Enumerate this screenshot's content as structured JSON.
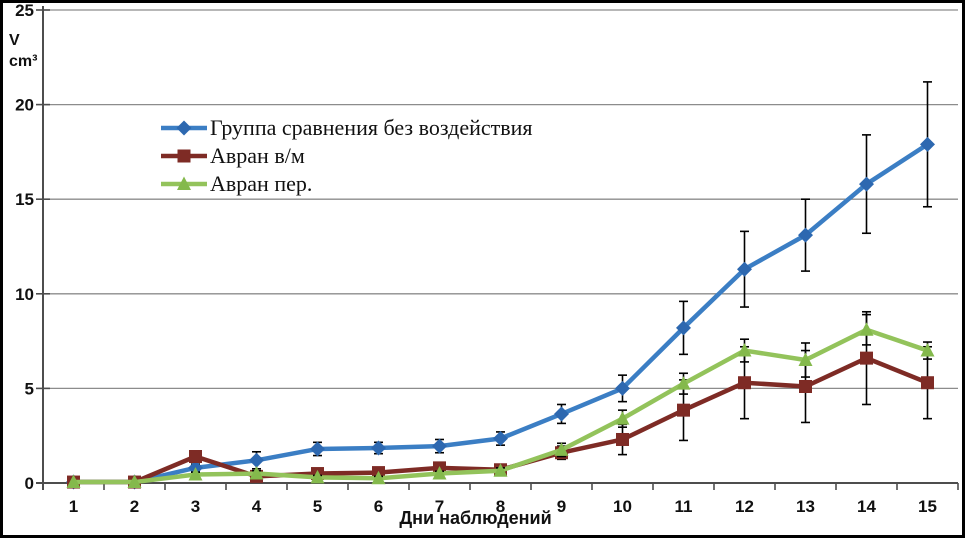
{
  "frame": {
    "background": "#ffffff",
    "border_color": "#000000"
  },
  "chart_data": {
    "type": "line",
    "title": "",
    "xlabel": "Дни наблюдений",
    "ylabel": "V cm³",
    "ylabel_lines": [
      "V",
      "cm³"
    ],
    "x_ticklabels": [
      "1",
      "2",
      "3",
      "4",
      "5",
      "6",
      "7",
      "8",
      "9",
      "10",
      "11",
      "12",
      "13",
      "14",
      "15"
    ],
    "yticks": [
      0,
      5,
      10,
      15,
      20,
      25
    ],
    "ylim": [
      0,
      25
    ],
    "grid": true,
    "error_bars": true,
    "legend_position": "inside-top-left",
    "axis_color": "#4d4d4d",
    "grid_color": "#8c8c8c",
    "error_bar_color": "#000000",
    "series": [
      {
        "name": "Группа сравнения без воздействия",
        "marker": "diamond",
        "line_color": "#3b7ec4",
        "marker_color": "#2d68b0",
        "values": [
          0.05,
          0.05,
          0.8,
          1.2,
          1.8,
          1.85,
          1.95,
          2.35,
          3.65,
          5.0,
          8.2,
          11.3,
          13.1,
          15.8,
          17.9
        ],
        "errors": [
          0,
          0,
          0.2,
          0.45,
          0.35,
          0.3,
          0.35,
          0.35,
          0.5,
          0.7,
          1.4,
          2.0,
          1.9,
          2.6,
          3.3
        ]
      },
      {
        "name": "Авран в/м",
        "marker": "square",
        "line_color": "#7e2b25",
        "marker_color": "#7e2b25",
        "values": [
          0.05,
          0.05,
          1.4,
          0.35,
          0.5,
          0.55,
          0.8,
          0.7,
          1.6,
          2.3,
          3.85,
          5.3,
          5.1,
          6.6,
          5.3
        ],
        "errors": [
          0,
          0,
          0.15,
          0.25,
          0.12,
          0.12,
          0.2,
          0.18,
          0.35,
          0.8,
          1.6,
          1.9,
          1.9,
          2.45,
          1.9
        ]
      },
      {
        "name": "Авран пер.",
        "marker": "triangle",
        "line_color": "#93c35b",
        "marker_color": "#84b94c",
        "values": [
          0.05,
          0.05,
          0.45,
          0.5,
          0.3,
          0.25,
          0.5,
          0.65,
          1.75,
          3.4,
          5.25,
          7.0,
          6.5,
          8.1,
          7.0
        ],
        "errors": [
          0,
          0,
          0.12,
          0.15,
          0.1,
          0.1,
          0.12,
          0.15,
          0.35,
          0.45,
          0.55,
          0.6,
          0.9,
          0.8,
          0.45
        ]
      }
    ]
  }
}
